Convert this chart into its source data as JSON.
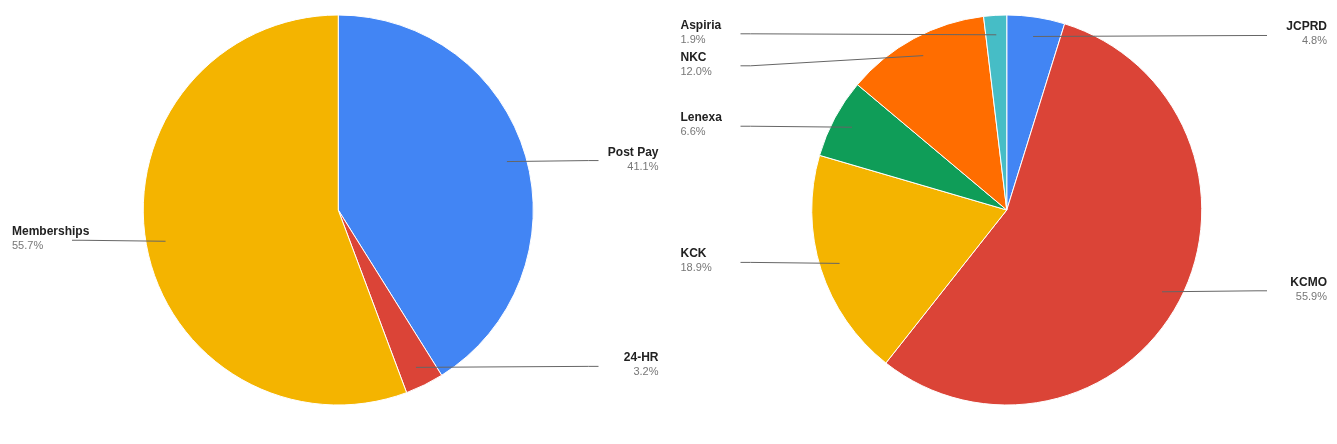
{
  "chart_data": [
    {
      "type": "pie",
      "categories": [
        "Post Pay",
        "24-HR",
        "Memberships"
      ],
      "values": [
        41.1,
        3.2,
        55.7
      ],
      "value_labels": [
        "41.1%",
        "3.2%",
        "55.7%"
      ],
      "colors": [
        "#4285f4",
        "#db4437",
        "#f4b400"
      ]
    },
    {
      "type": "pie",
      "categories": [
        "JCPRD",
        "KCMO",
        "KCK",
        "Lenexa",
        "NKC",
        "Aspiria"
      ],
      "values": [
        4.8,
        55.9,
        18.9,
        6.6,
        12.0,
        1.9
      ],
      "value_labels": [
        "4.8%",
        "55.9%",
        "18.9%",
        "6.6%",
        "12.0%",
        "1.9%"
      ],
      "colors": [
        "#4285f4",
        "#db4437",
        "#f4b400",
        "#0f9d58",
        "#ff6d00",
        "#46bdc6"
      ]
    }
  ]
}
